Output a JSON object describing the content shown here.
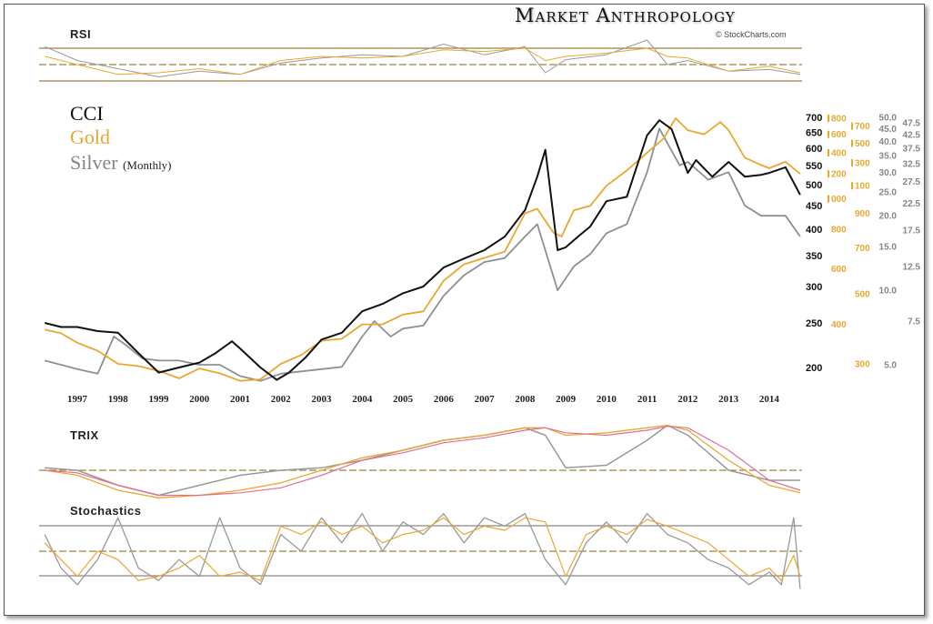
{
  "header": {
    "brand": "Market Anthropology",
    "copyright": "© StockCharts.com"
  },
  "panels": {
    "rsi": "RSI",
    "trix": "TRIX",
    "stoch": "Stochastics"
  },
  "legend": {
    "cci": "CCI",
    "gold": "Gold",
    "silver": "Silver",
    "period": "(Monthly)"
  },
  "colors": {
    "cci": "#111111",
    "gold": "#e8a830",
    "silver": "#8a9096",
    "pink": "#e07090",
    "grid": "#9a8540"
  },
  "chart_data": {
    "type": "line",
    "title": "CCI, Gold, Silver (Monthly)",
    "x_ticks": [
      "1997",
      "1998",
      "1999",
      "2000",
      "2001",
      "2002",
      "2003",
      "2004",
      "2005",
      "2006",
      "2007",
      "2008",
      "2009",
      "2010",
      "2011",
      "2012",
      "2013",
      "2014"
    ],
    "axes": {
      "cci": {
        "ticks": [
          "700",
          "650",
          "600",
          "550",
          "500",
          "450",
          "400",
          "350",
          "300",
          "250",
          "200"
        ],
        "range": [
          200,
          700
        ],
        "scale": "log"
      },
      "gold": {
        "ticks": [
          "1800",
          "1700",
          "1600",
          "1500",
          "1400",
          "1300",
          "1200",
          "1100",
          "1000",
          "900",
          "800",
          "700",
          "600",
          "500",
          "400",
          "300"
        ],
        "range": [
          300,
          1800
        ],
        "scale": "log"
      },
      "silver": {
        "ticks": [
          "50.0",
          "47.5",
          "45.0",
          "42.5",
          "40.0",
          "37.5",
          "35.0",
          "32.5",
          "30.0",
          "27.5",
          "25.0",
          "22.5",
          "20.0",
          "17.5",
          "15.0",
          "12.5",
          "10.0",
          "7.5",
          "5.0"
        ],
        "range": [
          5,
          50
        ],
        "scale": "log"
      }
    },
    "series": [
      {
        "name": "CCI",
        "x": [
          1996.2,
          1996.6,
          1997,
          1997.5,
          1998,
          1998.5,
          1999,
          1999.5,
          2000,
          2000.4,
          2000.8,
          2001,
          2001.5,
          2001.9,
          2002.2,
          2002.6,
          2003,
          2003.5,
          2004,
          2004.5,
          2005,
          2005.5,
          2006,
          2006.5,
          2007,
          2007.5,
          2008,
          2008.3,
          2008.5,
          2008.8,
          2009,
          2009.3,
          2009.6,
          2010,
          2010.5,
          2011,
          2011.3,
          2011.6,
          2012,
          2012.2,
          2012.6,
          2013,
          2013.4,
          2013.8,
          2014,
          2014.4,
          2014.6,
          2014.76
        ],
        "values": [
          250,
          245,
          245,
          240,
          238,
          215,
          195,
          200,
          205,
          215,
          228,
          220,
          200,
          188,
          195,
          210,
          230,
          238,
          265,
          275,
          290,
          300,
          330,
          345,
          360,
          385,
          440,
          520,
          595,
          360,
          365,
          385,
          405,
          460,
          470,
          640,
          690,
          660,
          530,
          565,
          520,
          560,
          520,
          525,
          530,
          545,
          505,
          475
        ]
      },
      {
        "name": "Gold",
        "x": [
          1996.2,
          1996.6,
          1997,
          1997.5,
          1998,
          1998.5,
          1999,
          1999.5,
          2000,
          2000.5,
          2001,
          2001.5,
          2002,
          2002.5,
          2003,
          2003.5,
          2004,
          2004.5,
          2005,
          2005.5,
          2006,
          2006.5,
          2007,
          2007.5,
          2008,
          2008.3,
          2008.7,
          2008.9,
          2009.2,
          2009.6,
          2010,
          2010.5,
          2011,
          2011.4,
          2011.7,
          2012,
          2012.4,
          2012.8,
          2013,
          2013.4,
          2013.8,
          2014,
          2014.4,
          2014.76
        ],
        "values": [
          385,
          375,
          350,
          330,
          300,
          295,
          285,
          270,
          290,
          280,
          265,
          268,
          300,
          320,
          355,
          360,
          400,
          400,
          430,
          440,
          550,
          620,
          650,
          680,
          900,
          930,
          780,
          760,
          920,
          950,
          1100,
          1230,
          1400,
          1550,
          1800,
          1650,
          1600,
          1750,
          1650,
          1350,
          1280,
          1250,
          1310,
          1200
        ]
      },
      {
        "name": "Silver",
        "x": [
          1996.2,
          1996.6,
          1997,
          1997.5,
          1997.9,
          1998.2,
          1998.6,
          1999,
          1999.5,
          2000,
          2000.5,
          2001,
          2001.5,
          2002,
          2002.5,
          2003,
          2003.5,
          2004,
          2004.3,
          2004.7,
          2005,
          2005.5,
          2006,
          2006.5,
          2007,
          2007.5,
          2008,
          2008.3,
          2008.8,
          2009.2,
          2009.6,
          2010,
          2010.5,
          2011,
          2011.3,
          2011.8,
          2012,
          2012.5,
          2013,
          2013.4,
          2013.8,
          2014,
          2014.4,
          2014.76
        ],
        "values": [
          5.2,
          5.0,
          4.8,
          4.6,
          6.5,
          6.0,
          5.3,
          5.2,
          5.2,
          5.0,
          5.0,
          4.5,
          4.3,
          4.6,
          4.7,
          4.8,
          4.9,
          6.5,
          7.5,
          6.5,
          7.0,
          7.2,
          9.5,
          11.5,
          13,
          13.5,
          16.5,
          18.5,
          10,
          12.5,
          14,
          17,
          18.5,
          30,
          45,
          32,
          33,
          28,
          30,
          22,
          20,
          20,
          20,
          16.5
        ]
      }
    ],
    "subpanels": {
      "rsi": {
        "levels": [
          70,
          50,
          30
        ],
        "x": [
          1996.2,
          1997,
          1998,
          1999,
          2000,
          2001,
          2002,
          2003,
          2004,
          2005,
          2006,
          2007,
          2008,
          2008.5,
          2009,
          2010,
          2011,
          2011.5,
          2012,
          2013,
          2014,
          2014.76
        ],
        "gold": [
          60,
          50,
          38,
          40,
          45,
          38,
          55,
          60,
          58,
          60,
          68,
          66,
          70,
          55,
          60,
          64,
          70,
          60,
          58,
          42,
          48,
          40
        ],
        "silver": [
          72,
          55,
          45,
          35,
          42,
          38,
          52,
          58,
          62,
          60,
          75,
          62,
          72,
          40,
          56,
          62,
          80,
          50,
          55,
          42,
          44,
          38
        ]
      },
      "trix": {
        "x": [
          1996.2,
          1997,
          1998,
          1999,
          2000,
          2001,
          2002,
          2003,
          2004,
          2005,
          2006,
          2007,
          2008,
          2008.5,
          2009,
          2010,
          2011,
          2011.5,
          2012,
          2013,
          2014,
          2014.76
        ],
        "gold": [
          0.0,
          -0.1,
          -0.4,
          -0.55,
          -0.5,
          -0.4,
          -0.25,
          0.0,
          0.25,
          0.4,
          0.6,
          0.7,
          0.85,
          0.85,
          0.7,
          0.75,
          0.85,
          0.9,
          0.8,
          0.2,
          -0.3,
          -0.45
        ],
        "silver": [
          0.05,
          0.0,
          -0.3,
          -0.5,
          -0.3,
          -0.1,
          0.0,
          0.05,
          0.2,
          0.4,
          0.6,
          0.7,
          0.85,
          0.7,
          0.05,
          0.1,
          0.6,
          0.9,
          0.7,
          0.0,
          -0.2,
          -0.2
        ],
        "signal": [
          0.0,
          -0.05,
          -0.3,
          -0.5,
          -0.5,
          -0.45,
          -0.35,
          -0.1,
          0.2,
          0.35,
          0.55,
          0.65,
          0.8,
          0.85,
          0.75,
          0.7,
          0.8,
          0.88,
          0.85,
          0.4,
          -0.2,
          -0.4
        ]
      },
      "stoch": {
        "levels": [
          80,
          50,
          20
        ],
        "x": [
          1996.2,
          1996.6,
          1997,
          1997.5,
          1998,
          1998.5,
          1999,
          1999.5,
          2000,
          2000.5,
          2001,
          2001.5,
          2002,
          2002.5,
          2003,
          2003.5,
          2004,
          2004.5,
          2005,
          2005.5,
          2006,
          2006.5,
          2007,
          2007.5,
          2008,
          2008.5,
          2009,
          2009.5,
          2010,
          2010.5,
          2011,
          2011.5,
          2012,
          2012.5,
          2013,
          2013.5,
          2014,
          2014.3,
          2014.6,
          2014.76
        ],
        "gold": [
          60,
          40,
          20,
          50,
          40,
          15,
          20,
          30,
          45,
          20,
          25,
          15,
          80,
          70,
          85,
          70,
          80,
          60,
          70,
          75,
          90,
          70,
          80,
          75,
          90,
          85,
          20,
          70,
          80,
          70,
          88,
          80,
          70,
          60,
          40,
          20,
          30,
          15,
          45,
          20
        ],
        "silver": [
          70,
          30,
          10,
          40,
          90,
          30,
          15,
          40,
          20,
          90,
          30,
          10,
          70,
          50,
          90,
          60,
          95,
          50,
          85,
          70,
          95,
          60,
          90,
          80,
          95,
          40,
          10,
          60,
          85,
          60,
          95,
          70,
          60,
          40,
          30,
          10,
          25,
          10,
          90,
          5
        ]
      }
    }
  }
}
